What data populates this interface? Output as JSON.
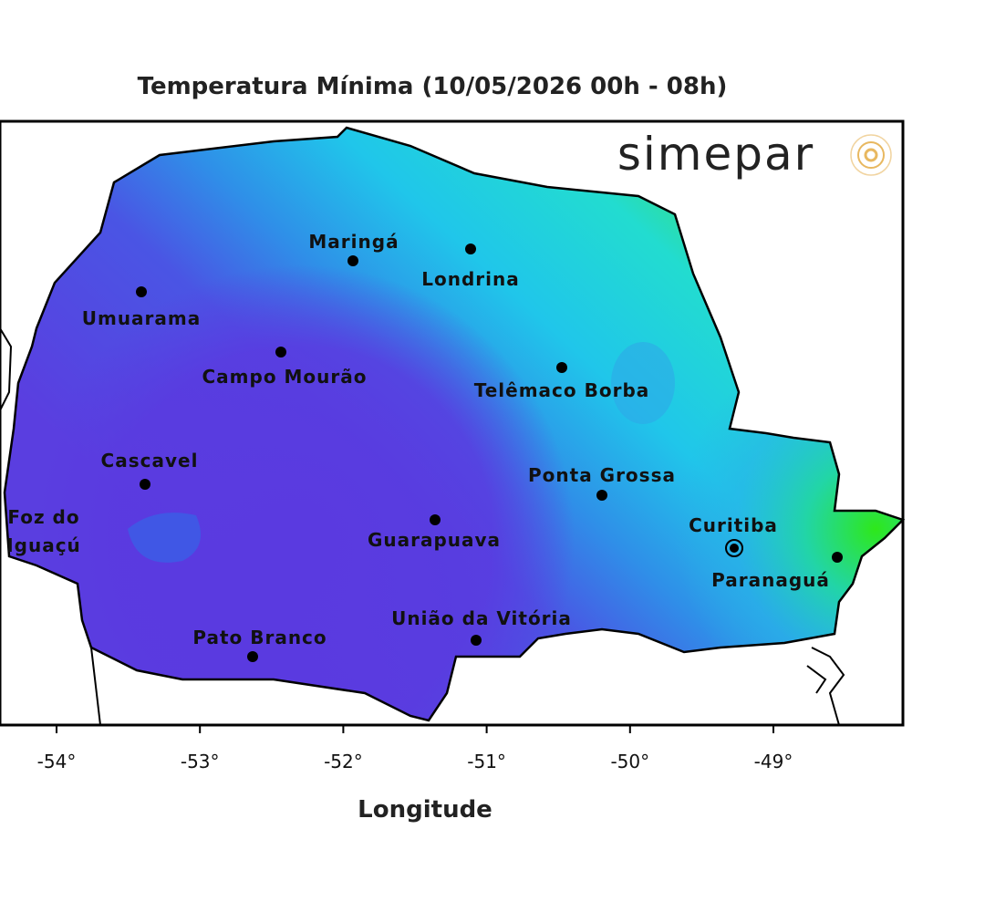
{
  "title": "Temperatura Mínima (10/05/2026 00h - 08h)",
  "logo": "simepar",
  "x_axis": {
    "label": "Longitude",
    "ticks": [
      {
        "value": -54,
        "label": "-54°"
      },
      {
        "value": -53,
        "label": "-53°"
      },
      {
        "value": -52,
        "label": "-52°"
      },
      {
        "value": -51,
        "label": "-51°"
      },
      {
        "value": -50,
        "label": "-50°"
      },
      {
        "value": -49,
        "label": "-49°"
      }
    ]
  },
  "cities": [
    {
      "label": "Maringá"
    },
    {
      "label": "Londrina"
    },
    {
      "label": "Umuarama"
    },
    {
      "label": "Campo Mourão"
    },
    {
      "label": "Telêmaco Borba"
    },
    {
      "label": "Cascavel"
    },
    {
      "label_lines": [
        "Foz do",
        "Iguaçú"
      ]
    },
    {
      "label": "Ponta Grossa"
    },
    {
      "label": "Guarapuava"
    },
    {
      "label": "Curitiba"
    },
    {
      "label": "Paranaguá"
    },
    {
      "label": "Pato Branco"
    },
    {
      "label": "União da Vitória"
    }
  ]
}
